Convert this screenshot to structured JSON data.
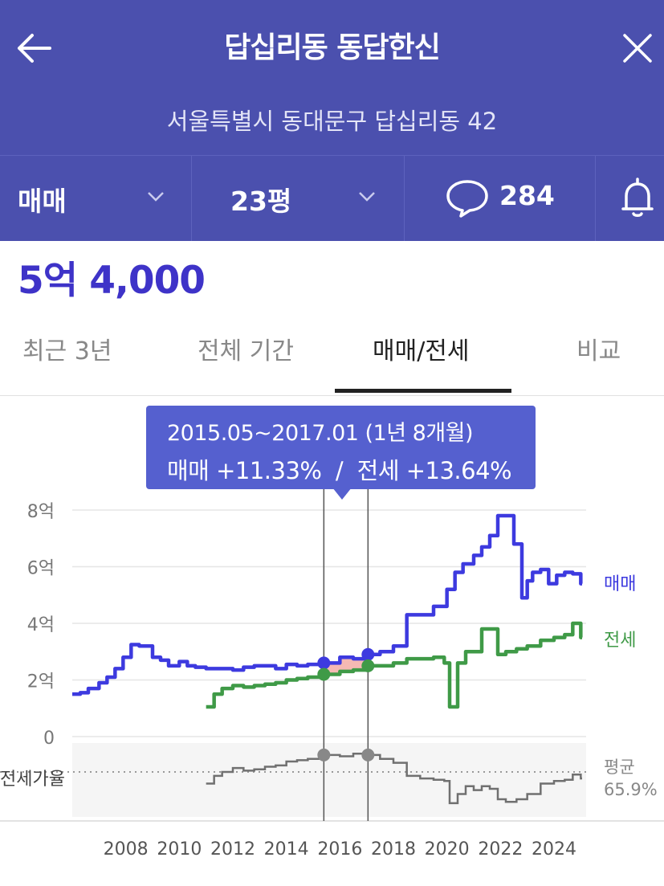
{
  "header": {
    "title": "답십리동 동답한신",
    "address": "서울특별시 동대문구 답십리동 42"
  },
  "filters": {
    "trade_type": "매매",
    "size": "23평",
    "comment_count": "284"
  },
  "price": "5억 4,000",
  "tabs": [
    {
      "label": "최근 3년",
      "active": false
    },
    {
      "label": "전체 기간",
      "active": false
    },
    {
      "label": "매매/전세",
      "active": true
    },
    {
      "label": "비교",
      "active": false
    }
  ],
  "tooltip": {
    "period": "2015.05~2017.01 (1년 8개월)",
    "sale_label": "매매",
    "sale_change": "+11.33%",
    "separator": "/",
    "jeonse_label": "전세",
    "jeonse_change": "+13.64%"
  },
  "colors": {
    "header": "#4b50ae",
    "sale": "#3d3adf",
    "jeonse": "#3f9a47",
    "ratio": "#707070",
    "price": "#3e33c8"
  },
  "chart_data": {
    "type": "line",
    "y_ticks": [
      "8억",
      "6억",
      "4억",
      "2억",
      "0"
    ],
    "y_tick_values": [
      8,
      6,
      4,
      2,
      0
    ],
    "x_ticks": [
      "2008",
      "2010",
      "2012",
      "2014",
      "2016",
      "2018",
      "2020",
      "2022",
      "2024"
    ],
    "ylim": [
      0,
      8
    ],
    "highlight": {
      "start": 2015.4,
      "end": 2017.05
    },
    "ratio_label": "전세가율",
    "average_label": "평균",
    "average_value": "65.9%",
    "series": [
      {
        "name": "매매",
        "x": [
          2006.0,
          2006.3,
          2006.6,
          2007.0,
          2007.3,
          2007.6,
          2007.9,
          2008.2,
          2008.5,
          2009.0,
          2009.3,
          2009.6,
          2010.0,
          2010.3,
          2010.6,
          2011.0,
          2011.5,
          2012.0,
          2012.4,
          2012.8,
          2013.2,
          2013.6,
          2014.0,
          2014.4,
          2014.8,
          2015.4,
          2016.0,
          2016.5,
          2017.05,
          2017.5,
          2018.0,
          2018.5,
          2019.0,
          2019.5,
          2020.0,
          2020.3,
          2020.6,
          2021.0,
          2021.3,
          2021.6,
          2021.9,
          2022.2,
          2022.5,
          2022.8,
          2023.0,
          2023.2,
          2023.5,
          2023.8,
          2024.1,
          2024.4,
          2024.7,
          2025.0
        ],
        "values": [
          1.5,
          1.55,
          1.7,
          1.9,
          2.1,
          2.4,
          2.8,
          3.25,
          3.2,
          2.8,
          2.7,
          2.5,
          2.65,
          2.5,
          2.45,
          2.4,
          2.4,
          2.35,
          2.45,
          2.5,
          2.5,
          2.4,
          2.55,
          2.5,
          2.55,
          2.6,
          2.8,
          2.75,
          2.9,
          3.0,
          3.2,
          4.3,
          4.3,
          4.6,
          5.2,
          5.8,
          6.1,
          6.4,
          6.7,
          7.1,
          7.8,
          7.8,
          6.8,
          4.9,
          5.5,
          5.8,
          5.9,
          5.4,
          5.7,
          5.8,
          5.75,
          5.4
        ]
      },
      {
        "name": "전세",
        "x": [
          2011.0,
          2011.3,
          2011.6,
          2012.0,
          2012.4,
          2012.8,
          2013.2,
          2013.6,
          2014.0,
          2014.4,
          2014.8,
          2015.4,
          2016.0,
          2016.5,
          2017.05,
          2017.5,
          2018.0,
          2018.5,
          2019.0,
          2019.5,
          2019.9,
          2020.1,
          2020.4,
          2020.7,
          2021.0,
          2021.3,
          2021.6,
          2021.9,
          2022.2,
          2022.6,
          2023.0,
          2023.5,
          2024.0,
          2024.4,
          2024.7,
          2025.0
        ],
        "values": [
          1.05,
          1.5,
          1.7,
          1.8,
          1.75,
          1.8,
          1.85,
          1.9,
          2.0,
          2.05,
          2.1,
          2.2,
          2.3,
          2.35,
          2.5,
          2.5,
          2.6,
          2.75,
          2.75,
          2.8,
          2.6,
          1.05,
          2.6,
          3.0,
          3.0,
          3.8,
          3.8,
          2.9,
          3.0,
          3.1,
          3.2,
          3.4,
          3.5,
          3.6,
          4.0,
          3.5
        ]
      },
      {
        "name": "전세가율",
        "x": [
          2011.0,
          2011.3,
          2011.6,
          2012.0,
          2012.4,
          2012.8,
          2013.2,
          2013.6,
          2014.0,
          2014.4,
          2014.8,
          2015.4,
          2016.0,
          2016.5,
          2017.05,
          2017.5,
          2018.0,
          2018.5,
          2019.0,
          2019.5,
          2019.9,
          2020.1,
          2020.4,
          2020.7,
          2021.0,
          2021.3,
          2021.6,
          2021.9,
          2022.2,
          2022.6,
          2023.0,
          2023.5,
          2024.0,
          2024.4,
          2024.7,
          2025.0
        ],
        "values": [
          60,
          66,
          69,
          72,
          70,
          71,
          73,
          74,
          77,
          78,
          79,
          82,
          81,
          83,
          82,
          79,
          76,
          66,
          64,
          63,
          62,
          45,
          52,
          58,
          55,
          58,
          56,
          48,
          46,
          48,
          52,
          60,
          62,
          63,
          67,
          64
        ]
      }
    ]
  }
}
